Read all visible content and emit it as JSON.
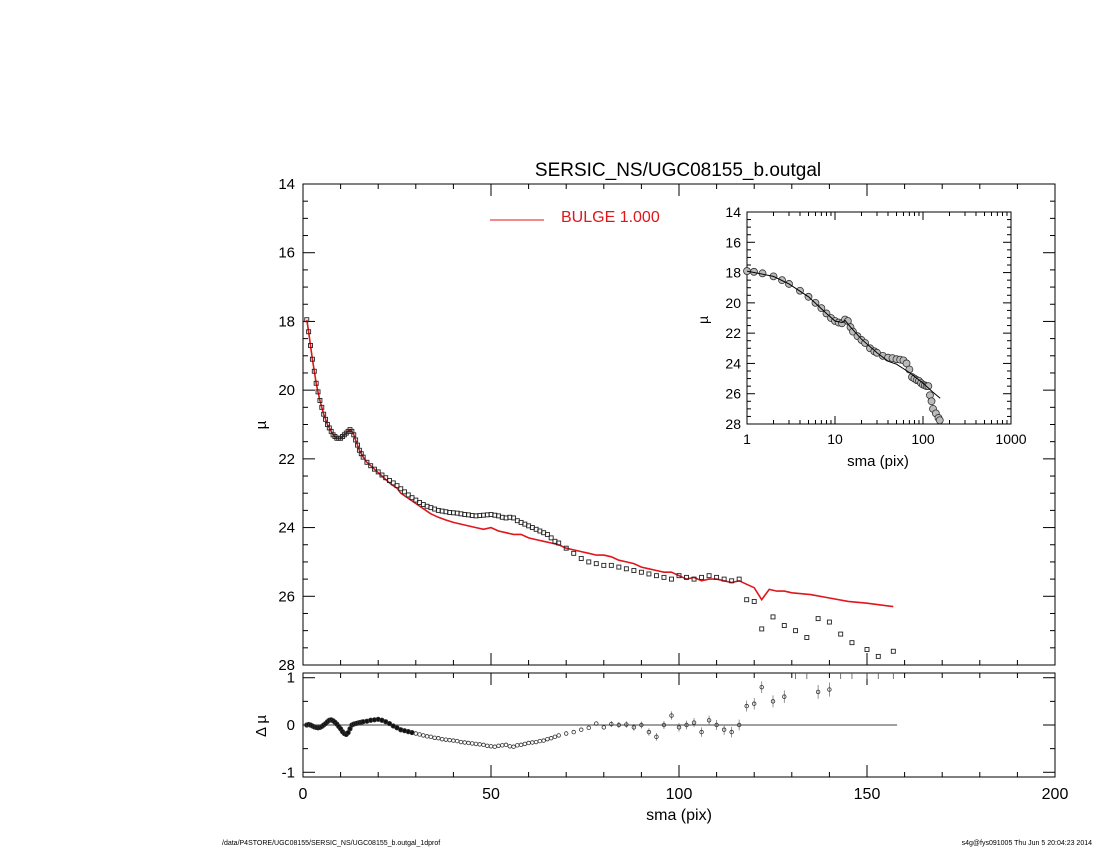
{
  "chart_data": [
    {
      "id": "main",
      "type": "scatter",
      "title": "SERSIC_NS/UGC08155_b.outgal",
      "xlabel": "",
      "ylabel": "µ",
      "xlim": [
        0,
        200
      ],
      "ylim": [
        28,
        14
      ],
      "y_inverted": true,
      "xticks": [
        0,
        50,
        100,
        150,
        200
      ],
      "yticks": [
        14,
        16,
        18,
        20,
        22,
        24,
        26,
        28
      ],
      "legend": {
        "label": "BULGE  1.000",
        "color": "#e0161b",
        "placement": "top"
      },
      "data_series": {
        "name": "",
        "color": "#000000",
        "x": [
          1,
          1.5,
          2,
          2.5,
          3,
          3.5,
          4,
          4.5,
          5,
          5.5,
          6,
          6.5,
          7,
          7.5,
          8,
          8.5,
          9,
          9.5,
          10,
          10.5,
          11,
          11.5,
          12,
          12.5,
          13,
          13.5,
          14,
          14.5,
          15,
          15.5,
          16,
          17,
          18,
          19,
          20,
          21,
          22,
          23,
          24,
          25,
          26,
          27,
          28,
          29,
          30,
          31,
          32,
          33,
          34,
          35,
          36,
          37,
          38,
          39,
          40,
          41,
          42,
          43,
          44,
          45,
          46,
          47,
          48,
          49,
          50,
          51,
          52,
          53,
          54,
          55,
          56,
          57,
          58,
          59,
          60,
          61,
          62,
          63,
          64,
          65,
          66,
          67,
          68,
          70,
          72,
          74,
          76,
          78,
          80,
          82,
          84,
          86,
          88,
          90,
          92,
          94,
          96,
          98,
          100,
          102,
          104,
          106,
          108,
          110,
          112,
          114,
          116,
          118,
          120,
          122,
          125,
          128,
          131,
          134,
          137,
          140,
          143,
          146,
          150,
          153,
          157
        ],
        "y": [
          17.95,
          18.3,
          18.7,
          19.1,
          19.45,
          19.8,
          20.05,
          20.3,
          20.5,
          20.7,
          20.85,
          21.0,
          21.1,
          21.2,
          21.3,
          21.35,
          21.4,
          21.4,
          21.4,
          21.35,
          21.3,
          21.25,
          21.2,
          21.15,
          21.2,
          21.3,
          21.45,
          21.6,
          21.75,
          21.85,
          21.95,
          22.1,
          22.2,
          22.3,
          22.38,
          22.47,
          22.55,
          22.63,
          22.7,
          22.78,
          22.87,
          22.96,
          23.05,
          23.13,
          23.2,
          23.27,
          23.33,
          23.38,
          23.42,
          23.46,
          23.5,
          23.52,
          23.54,
          23.56,
          23.57,
          23.58,
          23.6,
          23.62,
          23.63,
          23.65,
          23.66,
          23.65,
          23.64,
          23.63,
          23.62,
          23.64,
          23.66,
          23.7,
          23.72,
          23.7,
          23.72,
          23.8,
          23.85,
          23.9,
          23.95,
          24.0,
          24.05,
          24.1,
          24.15,
          24.2,
          24.3,
          24.4,
          24.45,
          24.6,
          24.75,
          24.9,
          25.0,
          25.05,
          25.1,
          25.1,
          25.15,
          25.2,
          25.25,
          25.3,
          25.35,
          25.4,
          25.45,
          25.5,
          25.4,
          25.45,
          25.5,
          25.45,
          25.4,
          25.45,
          25.5,
          25.55,
          25.5,
          26.1,
          26.15,
          26.95,
          26.6,
          26.85,
          27.0,
          27.2,
          26.65,
          26.75,
          27.1,
          27.35,
          27.55,
          27.75,
          27.6
        ]
      },
      "model_series": {
        "name": "BULGE  1.000",
        "color": "#e0161b",
        "x": [
          1,
          1.5,
          2,
          2.5,
          3,
          3.5,
          4,
          4.5,
          5,
          5.5,
          6,
          6.5,
          7,
          7.5,
          8,
          8.5,
          9,
          9.5,
          10,
          10.5,
          11,
          11.5,
          12,
          12.5,
          13,
          13.5,
          14,
          14.5,
          15,
          15.5,
          16,
          17,
          18,
          19,
          20,
          21,
          22,
          23,
          24,
          25,
          26,
          28,
          30,
          32,
          34,
          36,
          38,
          40,
          42,
          44,
          46,
          48,
          50,
          52,
          54,
          56,
          58,
          60,
          62,
          64,
          66,
          68,
          70,
          72,
          74,
          76,
          78,
          80,
          82,
          84,
          86,
          88,
          90,
          92,
          94,
          96,
          98,
          100,
          102,
          104,
          106,
          108,
          110,
          112,
          114,
          116,
          118,
          120,
          122,
          124,
          126,
          128,
          130,
          135,
          140,
          145,
          150,
          157
        ],
        "y": [
          17.95,
          18.3,
          18.7,
          19.1,
          19.45,
          19.8,
          20.05,
          20.3,
          20.5,
          20.7,
          20.85,
          21.0,
          21.1,
          21.2,
          21.3,
          21.35,
          21.4,
          21.4,
          21.4,
          21.35,
          21.3,
          21.25,
          21.2,
          21.15,
          21.2,
          21.3,
          21.45,
          21.6,
          21.75,
          21.85,
          21.95,
          22.1,
          22.2,
          22.3,
          22.4,
          22.5,
          22.6,
          22.7,
          22.78,
          22.85,
          23.0,
          23.15,
          23.3,
          23.45,
          23.6,
          23.7,
          23.78,
          23.85,
          23.9,
          23.95,
          24.0,
          24.05,
          24.0,
          24.1,
          24.15,
          24.2,
          24.2,
          24.3,
          24.35,
          24.4,
          24.45,
          24.5,
          24.6,
          24.65,
          24.7,
          24.75,
          24.8,
          24.8,
          24.85,
          24.95,
          25.0,
          25.05,
          25.15,
          25.2,
          25.25,
          25.3,
          25.3,
          25.4,
          25.5,
          25.45,
          25.55,
          25.5,
          25.5,
          25.55,
          25.6,
          25.55,
          25.65,
          25.75,
          26.1,
          25.8,
          25.85,
          25.85,
          25.9,
          25.95,
          26.05,
          26.15,
          26.2,
          26.3
        ]
      }
    },
    {
      "id": "inset",
      "type": "scatter",
      "title": "",
      "xlabel": "sma (pix)",
      "ylabel": "µ",
      "xscale": "log",
      "xlim": [
        1,
        1000
      ],
      "ylim": [
        28,
        14
      ],
      "y_inverted": true,
      "xticks": [
        1,
        10,
        100,
        1000
      ],
      "xtick_labels": [
        "1",
        "10",
        "100",
        "1000"
      ],
      "yticks": [
        14,
        16,
        18,
        20,
        22,
        24,
        26,
        28
      ],
      "data_series": {
        "name": "",
        "color": "#555555",
        "x": [
          1,
          1.2,
          1.5,
          2,
          2.5,
          3,
          4,
          5,
          6,
          7,
          8,
          9,
          10,
          11,
          12,
          13,
          14,
          15,
          16,
          18,
          20,
          22,
          25,
          28,
          30,
          35,
          40,
          45,
          50,
          55,
          60,
          65,
          70,
          75,
          80,
          85,
          90,
          95,
          100,
          105,
          110,
          115,
          120,
          125,
          130,
          140,
          150,
          155
        ],
        "y": [
          17.9,
          17.95,
          18.05,
          18.25,
          18.5,
          18.75,
          19.2,
          19.6,
          20.0,
          20.35,
          20.7,
          21.0,
          21.2,
          21.3,
          21.35,
          21.1,
          21.2,
          21.6,
          21.9,
          22.2,
          22.45,
          22.65,
          23.0,
          23.2,
          23.3,
          23.5,
          23.62,
          23.65,
          23.72,
          23.75,
          23.8,
          24.0,
          24.4,
          24.9,
          25.0,
          25.1,
          25.15,
          25.3,
          25.4,
          25.45,
          25.5,
          25.5,
          26.1,
          26.5,
          27.0,
          27.3,
          27.6,
          27.75
        ]
      },
      "model_series": {
        "name": "",
        "color": "#000000",
        "x": [
          1,
          2,
          3,
          5,
          8,
          10,
          12,
          13,
          15,
          20,
          30,
          40,
          50,
          70,
          100,
          130,
          157
        ],
        "y": [
          17.9,
          18.25,
          18.75,
          19.6,
          20.7,
          21.2,
          21.3,
          21.15,
          21.6,
          22.4,
          23.3,
          23.85,
          24.05,
          24.6,
          25.3,
          25.9,
          26.3
        ]
      }
    },
    {
      "id": "residual",
      "type": "scatter",
      "title": "",
      "xlabel": "sma (pix)",
      "ylabel": "Δ µ",
      "xlim": [
        0,
        200
      ],
      "ylim": [
        -1.1,
        1.1
      ],
      "xticks": [
        0,
        50,
        100,
        150,
        200
      ],
      "yticks": [
        -1,
        0,
        1
      ],
      "zero_line": true,
      "series": {
        "name": "",
        "color": "#555555",
        "x": [
          1,
          1.5,
          2,
          2.5,
          3,
          3.5,
          4,
          4.5,
          5,
          5.5,
          6,
          6.5,
          7,
          7.5,
          8,
          8.5,
          9,
          9.5,
          10,
          10.5,
          11,
          11.5,
          12,
          12.5,
          13,
          13.5,
          14,
          14.5,
          15,
          15.5,
          16,
          17,
          18,
          19,
          20,
          21,
          22,
          23,
          24,
          25,
          26,
          27,
          28,
          29,
          30,
          31,
          32,
          33,
          34,
          35,
          36,
          37,
          38,
          39,
          40,
          41,
          42,
          43,
          44,
          45,
          46,
          47,
          48,
          49,
          50,
          51,
          52,
          53,
          54,
          55,
          56,
          57,
          58,
          59,
          60,
          61,
          62,
          63,
          64,
          65,
          66,
          67,
          68,
          70,
          72,
          74,
          76,
          78,
          80,
          82,
          84,
          86,
          88,
          90,
          92,
          94,
          96,
          98,
          100,
          102,
          104,
          106,
          108,
          110,
          112,
          114,
          116,
          118,
          120,
          122,
          125,
          128,
          131,
          134,
          137,
          140,
          143,
          146,
          150,
          153,
          157
        ],
        "y": [
          0.0,
          0.01,
          0.0,
          -0.02,
          -0.04,
          -0.05,
          -0.06,
          -0.05,
          -0.03,
          0.0,
          0.03,
          0.07,
          0.1,
          0.11,
          0.09,
          0.06,
          0.02,
          -0.03,
          -0.08,
          -0.14,
          -0.18,
          -0.2,
          -0.16,
          -0.08,
          0.0,
          0.02,
          0.03,
          0.04,
          0.05,
          0.06,
          0.07,
          0.08,
          0.1,
          0.11,
          0.12,
          0.1,
          0.07,
          0.03,
          -0.02,
          -0.06,
          -0.1,
          -0.12,
          -0.14,
          -0.16,
          -0.18,
          -0.2,
          -0.22,
          -0.24,
          -0.25,
          -0.27,
          -0.28,
          -0.3,
          -0.31,
          -0.32,
          -0.33,
          -0.34,
          -0.36,
          -0.37,
          -0.38,
          -0.39,
          -0.4,
          -0.41,
          -0.42,
          -0.44,
          -0.45,
          -0.46,
          -0.44,
          -0.43,
          -0.42,
          -0.45,
          -0.46,
          -0.43,
          -0.42,
          -0.4,
          -0.38,
          -0.37,
          -0.36,
          -0.34,
          -0.33,
          -0.3,
          -0.28,
          -0.25,
          -0.22,
          -0.18,
          -0.15,
          -0.1,
          -0.06,
          0.03,
          -0.05,
          0.02,
          0.0,
          0.01,
          -0.05,
          0.0,
          -0.15,
          -0.25,
          0.0,
          0.2,
          -0.05,
          0.0,
          0.05,
          -0.15,
          0.1,
          0.0,
          -0.1,
          -0.15,
          0.0,
          0.4,
          0.45,
          0.8,
          0.5,
          0.6,
          1.05,
          1.1,
          0.7,
          0.75,
          1.05,
          1.1,
          1.1,
          1.1,
          1.1
        ]
      }
    }
  ],
  "footer": {
    "left": "/data/P4STORE/UGC08155/SERSIC_NS/UGC08155_b.outgal_1dprof",
    "right": "s4g@fys091005  Thu Jun  5 20:04:23 2014"
  }
}
